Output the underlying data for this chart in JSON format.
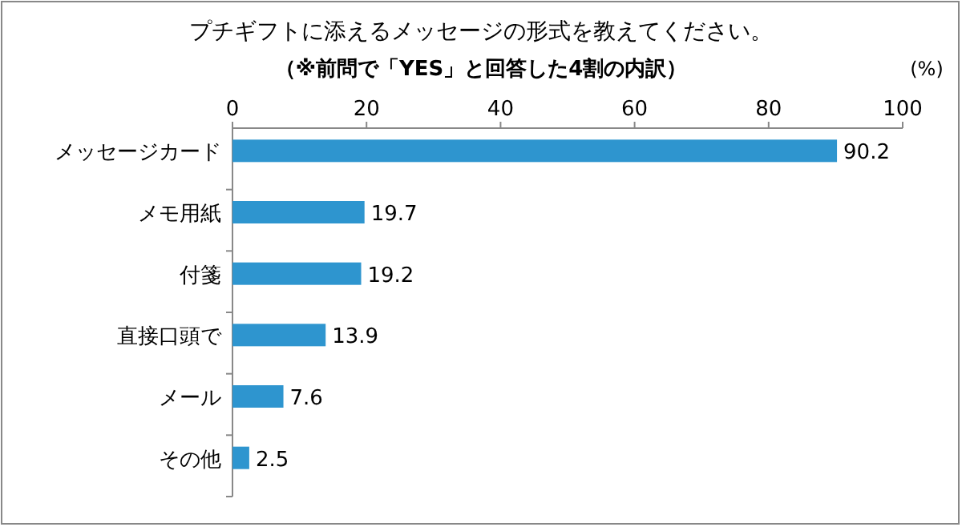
{
  "chart_data": {
    "type": "bar",
    "orientation": "horizontal",
    "title": "プチギフトに添えるメッセージの形式を教えてください。",
    "subtitle": "（※前問で「YES」と回答した4割の内訳）",
    "xlabel": "(%)",
    "categories": [
      "メッセージカード",
      "メモ用紙",
      "付箋",
      "直接口頭で",
      "メール",
      "その他"
    ],
    "values": [
      90.2,
      19.7,
      19.2,
      13.9,
      7.6,
      2.5
    ],
    "color": "#2e95cf",
    "xlim": [
      0,
      100
    ],
    "xticks": [
      0,
      20,
      40,
      60,
      80,
      100
    ],
    "data_labels": true
  }
}
